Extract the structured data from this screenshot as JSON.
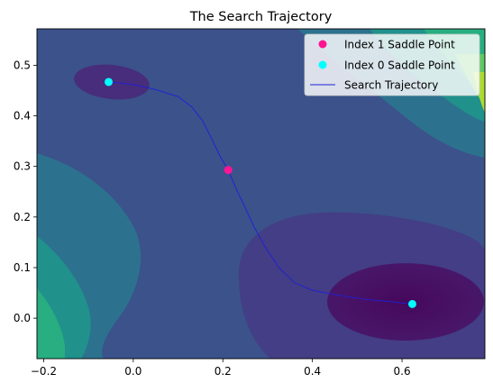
{
  "chart_data": {
    "type": "scatter",
    "title": "The Search Trajectory",
    "xlabel": "",
    "ylabel": "",
    "xlim": [
      -0.215,
      0.785
    ],
    "ylim": [
      -0.08,
      0.572
    ],
    "xticks": [
      -0.2,
      0.0,
      0.2,
      0.4,
      0.6
    ],
    "xtick_labels": [
      "−0.2",
      "0.0",
      "0.2",
      "0.4",
      "0.6"
    ],
    "yticks": [
      0.0,
      0.1,
      0.2,
      0.3,
      0.4,
      0.5
    ],
    "ytick_labels": [
      "0.0",
      "0.1",
      "0.2",
      "0.3",
      "0.4",
      "0.5"
    ],
    "background": "filled contour plot of the potential energy surface (viridis colormap)",
    "series": [
      {
        "name": "Index 1 Saddle Point",
        "kind": "scatter",
        "color": "#ff1493",
        "points": [
          [
            0.212,
            0.293
          ]
        ]
      },
      {
        "name": "Index 0 Saddle Point",
        "kind": "scatter",
        "color": "#00ffff",
        "points": [
          [
            -0.055,
            0.467
          ],
          [
            0.623,
            0.028
          ]
        ]
      },
      {
        "name": "Search Trajectory",
        "kind": "line",
        "color": "#1f1fd8",
        "points": [
          [
            -0.055,
            0.467
          ],
          [
            0.0,
            0.462
          ],
          [
            0.05,
            0.452
          ],
          [
            0.1,
            0.438
          ],
          [
            0.13,
            0.418
          ],
          [
            0.155,
            0.39
          ],
          [
            0.175,
            0.355
          ],
          [
            0.195,
            0.318
          ],
          [
            0.212,
            0.293
          ],
          [
            0.23,
            0.255
          ],
          [
            0.25,
            0.218
          ],
          [
            0.27,
            0.18
          ],
          [
            0.295,
            0.14
          ],
          [
            0.325,
            0.1
          ],
          [
            0.36,
            0.07
          ],
          [
            0.4,
            0.055
          ],
          [
            0.46,
            0.045
          ],
          [
            0.52,
            0.037
          ],
          [
            0.58,
            0.032
          ],
          [
            0.623,
            0.028
          ]
        ]
      }
    ],
    "legend": {
      "position": "top-right",
      "entries": [
        "Index 1 Saddle Point",
        "Index 0 Saddle Point",
        "Search Trajectory"
      ]
    },
    "grid": false
  }
}
